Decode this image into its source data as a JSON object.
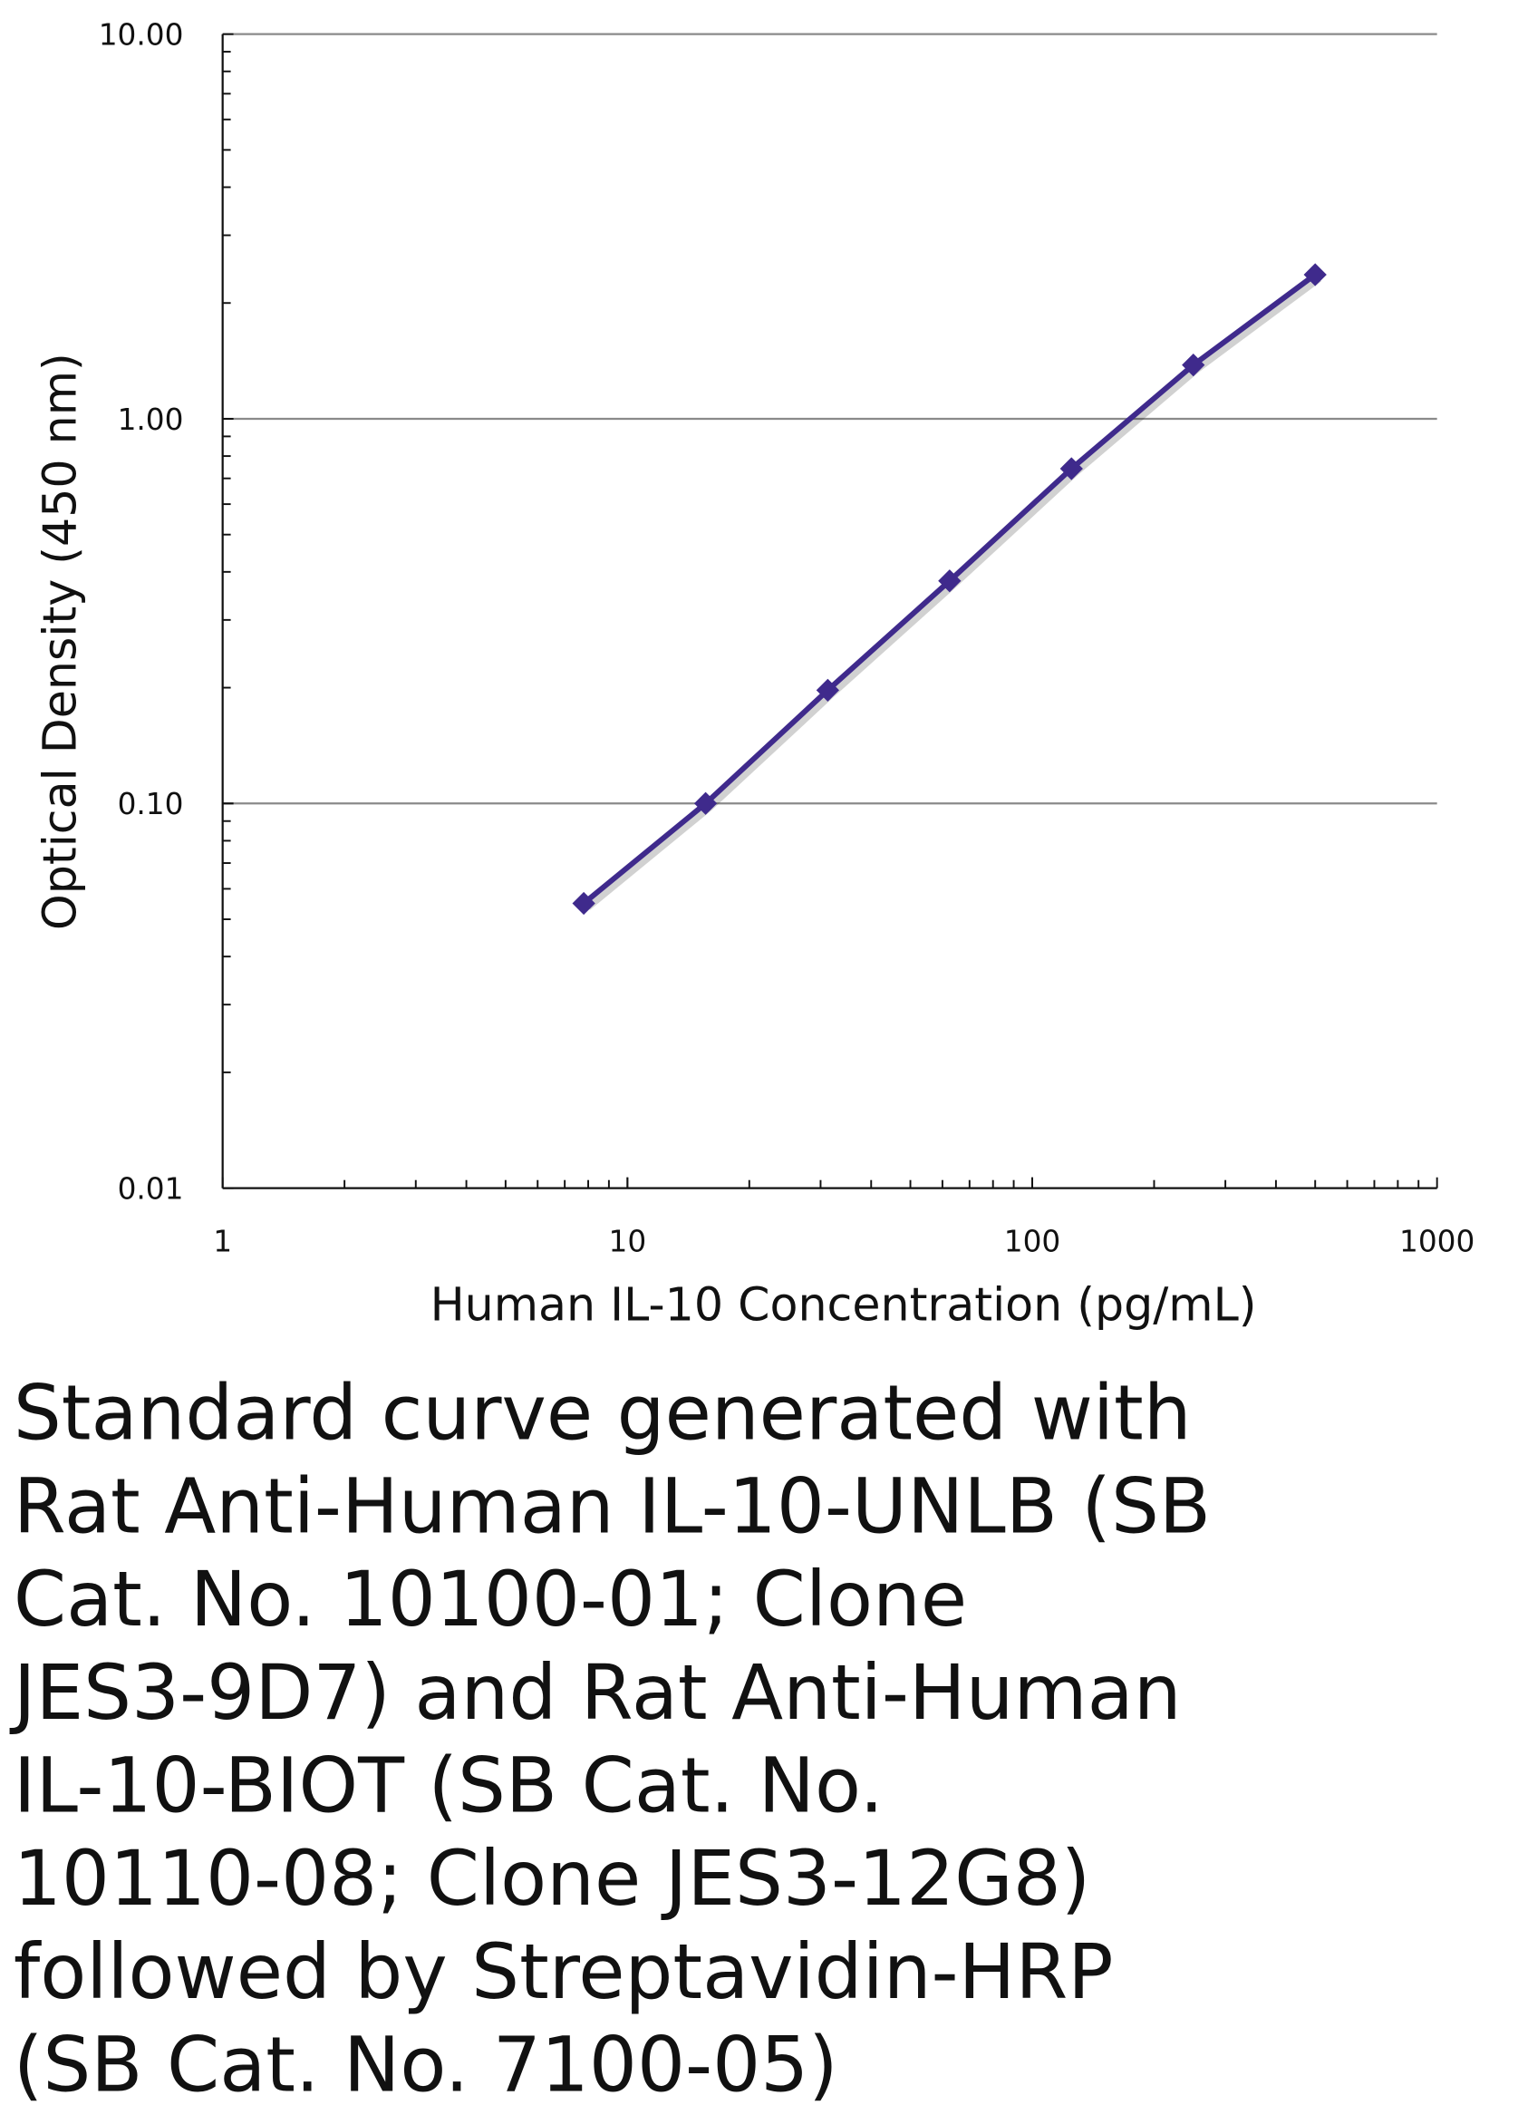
{
  "chart_data": {
    "type": "line",
    "title": "",
    "xlabel": "Human IL-10 Concentration (pg/mL)",
    "ylabel": "Optical Density (450 nm)",
    "xscale": "log",
    "yscale": "log",
    "xlim": [
      1,
      1000
    ],
    "ylim": [
      0.01,
      10
    ],
    "x_ticks": [
      "1",
      "10",
      "100",
      "1000"
    ],
    "y_ticks": [
      "0.01",
      "0.10",
      "1.00",
      "10.00"
    ],
    "grid": "horizontal major",
    "legend": "none",
    "series": [
      {
        "name": "Standard curve",
        "color": "#3f2a8c",
        "marker": "diamond",
        "x": [
          7.8,
          15.6,
          31.25,
          62.5,
          125,
          250,
          500
        ],
        "y": [
          0.055,
          0.1,
          0.197,
          0.379,
          0.742,
          1.38,
          2.37
        ]
      }
    ]
  },
  "caption_lines": [
    "Standard curve generated with",
    "Rat Anti-Human IL-10-UNLB (SB",
    "Cat. No. 10100-01; Clone",
    "JES3-9D7) and Rat Anti-Human",
    "IL-10-BIOT (SB Cat. No.",
    "10110-08; Clone JES3-12G8)",
    "followed by Streptavidin-HRP",
    "(SB Cat. No. 7100-05)"
  ]
}
